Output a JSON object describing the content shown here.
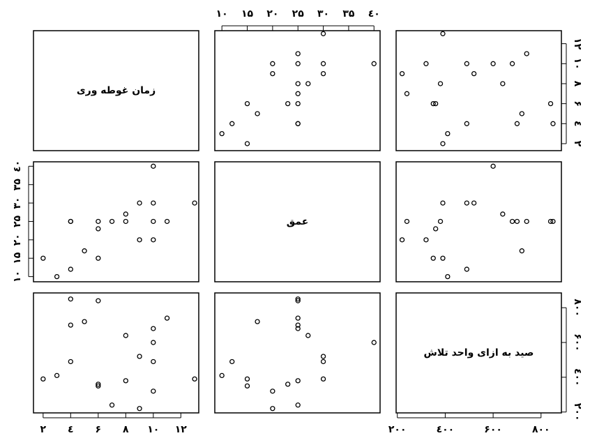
{
  "chart_data": {
    "type": "pairs",
    "variables": [
      {
        "name": "زمان غوطه وری",
        "lim": [
          1.3,
          13.3
        ],
        "ticks": [
          {
            "value": 2,
            "label": "٢"
          },
          {
            "value": 4,
            "label": "٤"
          },
          {
            "value": 6,
            "label": "۶"
          },
          {
            "value": 8,
            "label": "٨"
          },
          {
            "value": 10,
            "label": "١٠"
          },
          {
            "value": 12,
            "label": "١٢"
          }
        ],
        "values": [
          13,
          11,
          10,
          10,
          10,
          10,
          9,
          9,
          8,
          8,
          7,
          6,
          6,
          6,
          5,
          4,
          4,
          4,
          3,
          2
        ]
      },
      {
        "name": "عمق",
        "lim": [
          8.6,
          41.2
        ],
        "ticks": [
          {
            "value": 10,
            "label": "١٠"
          },
          {
            "value": 15,
            "label": "١۵"
          },
          {
            "value": 20,
            "label": "٢٠"
          },
          {
            "value": 25,
            "label": "٢۵"
          },
          {
            "value": 30,
            "label": "٣٠"
          },
          {
            "value": 35,
            "label": "٣۵"
          },
          {
            "value": 40,
            "label": "٤٠"
          }
        ],
        "values": [
          30,
          25,
          20,
          30,
          40,
          25,
          20,
          30,
          25,
          27,
          25,
          15,
          23,
          25,
          17,
          12,
          25,
          25,
          10,
          15
        ]
      },
      {
        "name": "صید به ازای واحد تلاش",
        "lim": [
          195,
          885
        ],
        "ticks": [
          {
            "value": 200,
            "label": "٢٠٠"
          },
          {
            "value": 400,
            "label": "٤٠٠"
          },
          {
            "value": 600,
            "label": "۶٠٠"
          },
          {
            "value": 800,
            "label": "٨٠٠"
          }
        ],
        "values": [
          390,
          740,
          320,
          490,
          600,
          680,
          220,
          520,
          380,
          640,
          240,
          350,
          360,
          840,
          720,
          490,
          700,
          850,
          410,
          390
        ]
      }
    ]
  }
}
